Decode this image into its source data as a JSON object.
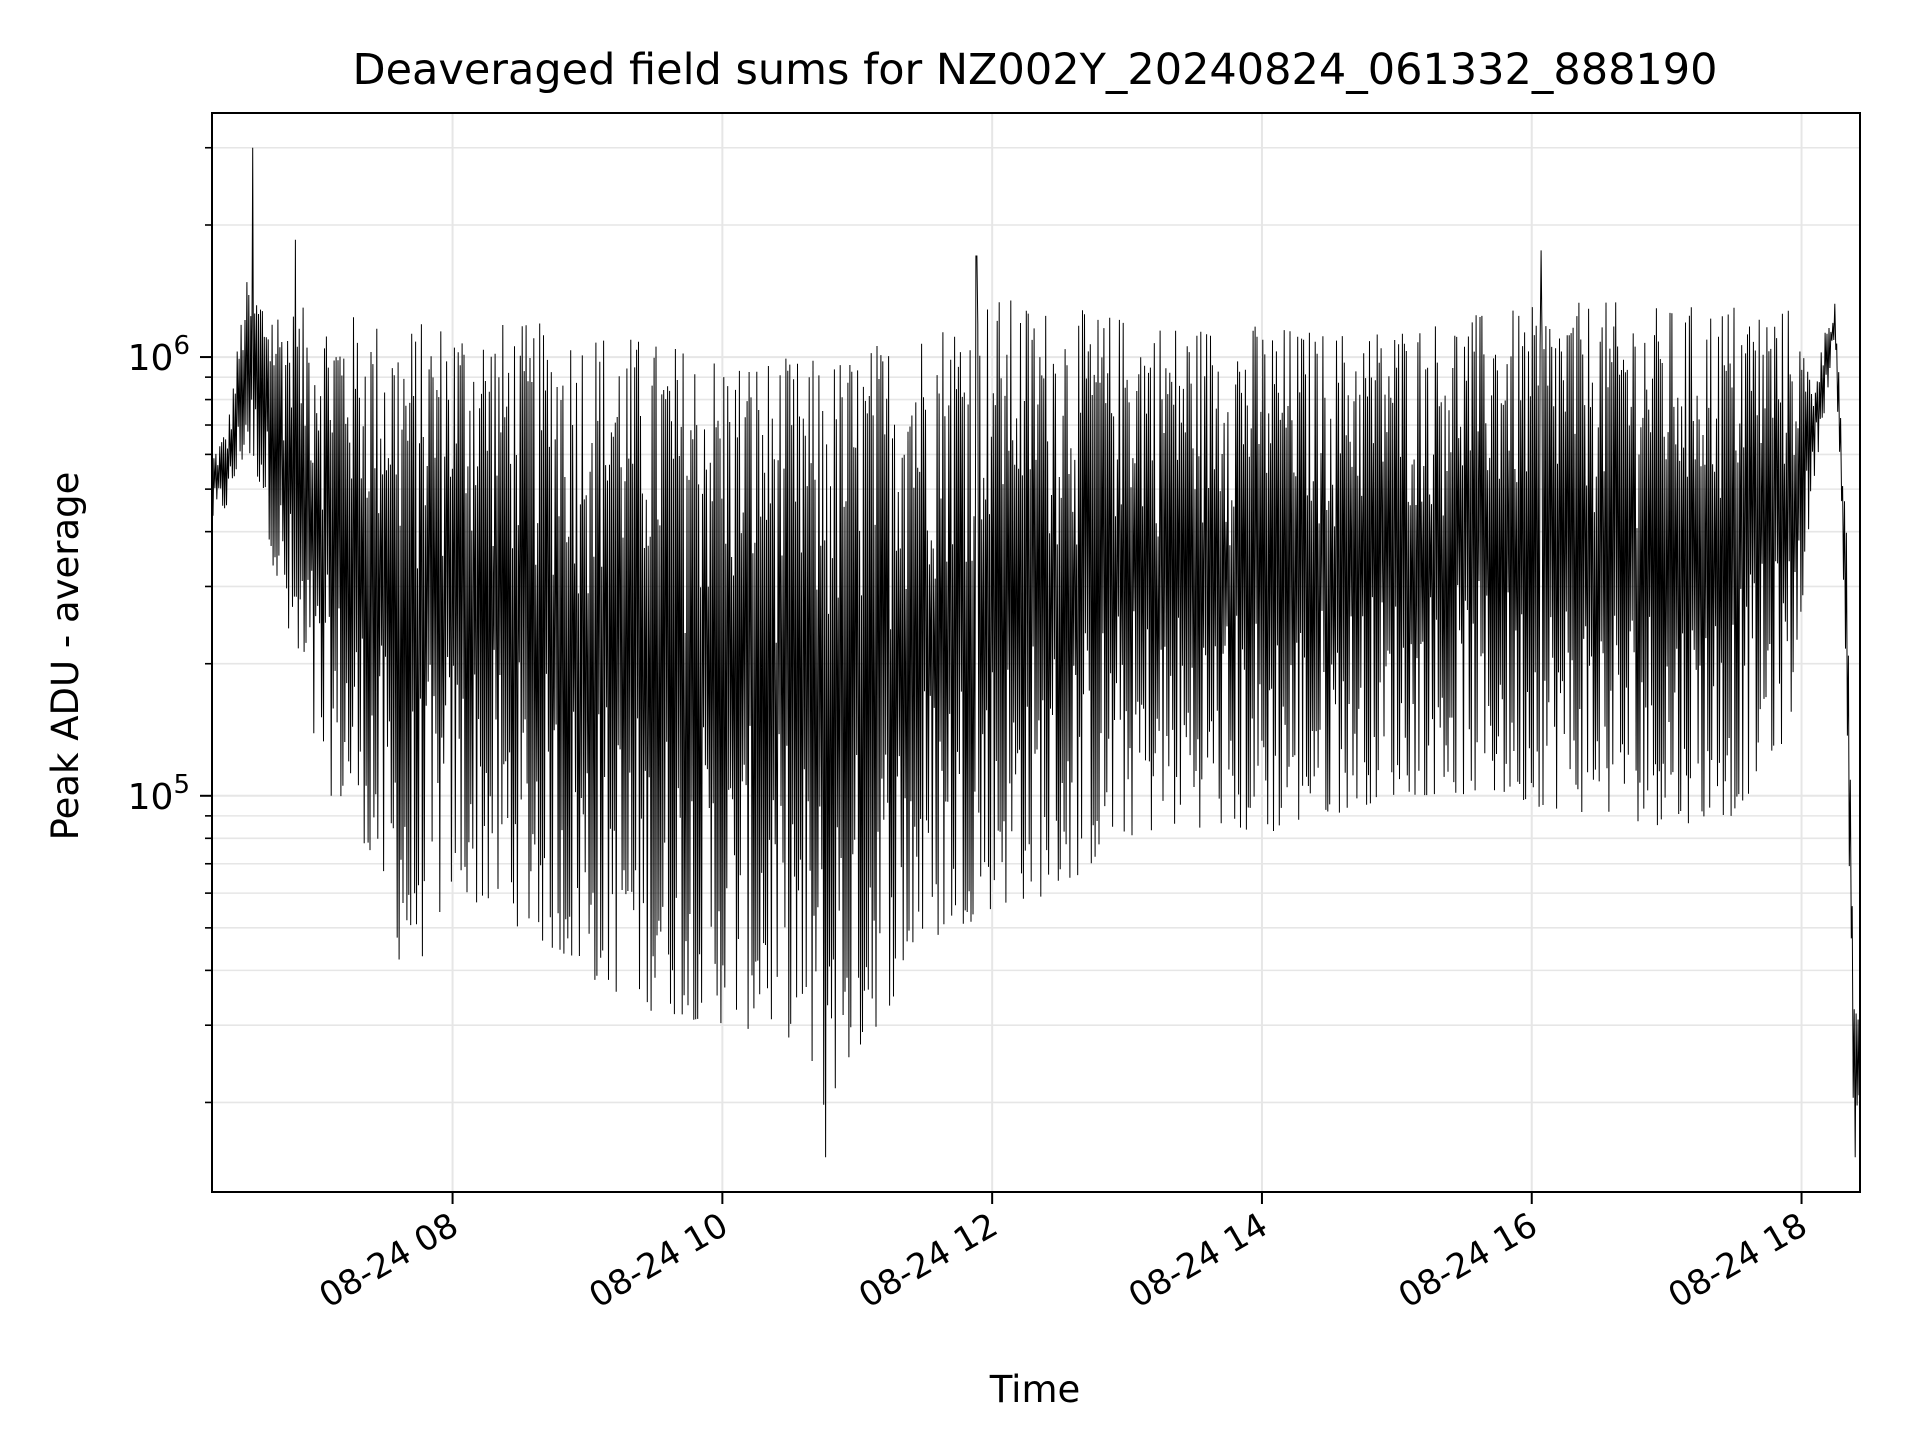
{
  "chart_data": {
    "type": "line",
    "title": "Deaveraged field sums for NZ002Y_20240824_061332_888190",
    "xlabel": "Time",
    "ylabel": "Peak ADU - average",
    "x_range": [
      "2024-08-24T06:13",
      "2024-08-24T18:26"
    ],
    "ylim": [
      12500,
      3600000
    ],
    "y_scale": "log",
    "grid": true,
    "line_color": "#000000",
    "x_ticks": [
      {
        "t": "2024-08-24T08:00",
        "label": "08-24 08"
      },
      {
        "t": "2024-08-24T10:00",
        "label": "08-24 10"
      },
      {
        "t": "2024-08-24T12:00",
        "label": "08-24 12"
      },
      {
        "t": "2024-08-24T14:00",
        "label": "08-24 14"
      },
      {
        "t": "2024-08-24T16:00",
        "label": "08-24 16"
      },
      {
        "t": "2024-08-24T18:00",
        "label": "08-24 18"
      }
    ],
    "y_ticks": [
      {
        "value": 100000,
        "base": "10",
        "exp": "5"
      },
      {
        "value": 1000000,
        "base": "10",
        "exp": "6"
      }
    ],
    "series": [
      {
        "style": "oscillating",
        "points": [
          {
            "t": "2024-08-24T06:13",
            "upper": 600000,
            "lower": 420000
          },
          {
            "t": "2024-08-24T06:20",
            "upper": 700000,
            "lower": 450000
          },
          {
            "t": "2024-08-24T06:28",
            "upper": 1500000,
            "lower": 600000
          },
          {
            "t": "2024-08-24T06:35",
            "upper": 1400000,
            "lower": 500000
          },
          {
            "t": "2024-08-24T06:45",
            "upper": 1300000,
            "lower": 230000
          },
          {
            "t": "2024-08-24T07:00",
            "upper": 1300000,
            "lower": 110000
          },
          {
            "t": "2024-08-24T07:20",
            "upper": 1250000,
            "lower": 80000
          },
          {
            "t": "2024-08-24T07:40",
            "upper": 1200000,
            "lower": 36000
          },
          {
            "t": "2024-08-24T08:00",
            "upper": 1250000,
            "lower": 60000
          },
          {
            "t": "2024-08-24T08:30",
            "upper": 1200000,
            "lower": 50000
          },
          {
            "t": "2024-08-24T09:00",
            "upper": 1200000,
            "lower": 38000
          },
          {
            "t": "2024-08-24T09:30",
            "upper": 1100000,
            "lower": 32000
          },
          {
            "t": "2024-08-24T10:00",
            "upper": 1050000,
            "lower": 30000
          },
          {
            "t": "2024-08-24T10:30",
            "upper": 1000000,
            "lower": 28000
          },
          {
            "t": "2024-08-24T10:45",
            "upper": 1000000,
            "lower": 19000
          },
          {
            "t": "2024-08-24T11:00",
            "upper": 1050000,
            "lower": 25000
          },
          {
            "t": "2024-08-24T11:30",
            "upper": 1200000,
            "lower": 45000
          },
          {
            "t": "2024-08-24T12:00",
            "upper": 1400000,
            "lower": 55000
          },
          {
            "t": "2024-08-24T12:30",
            "upper": 1300000,
            "lower": 60000
          },
          {
            "t": "2024-08-24T13:00",
            "upper": 1250000,
            "lower": 80000
          },
          {
            "t": "2024-08-24T13:30",
            "upper": 1200000,
            "lower": 85000
          },
          {
            "t": "2024-08-24T14:00",
            "upper": 1200000,
            "lower": 80000
          },
          {
            "t": "2024-08-24T14:30",
            "upper": 1150000,
            "lower": 90000
          },
          {
            "t": "2024-08-24T15:00",
            "upper": 1200000,
            "lower": 100000
          },
          {
            "t": "2024-08-24T15:30",
            "upper": 1250000,
            "lower": 100000
          },
          {
            "t": "2024-08-24T16:00",
            "upper": 1300000,
            "lower": 95000
          },
          {
            "t": "2024-08-24T16:30",
            "upper": 1350000,
            "lower": 90000
          },
          {
            "t": "2024-08-24T17:00",
            "upper": 1300000,
            "lower": 85000
          },
          {
            "t": "2024-08-24T17:30",
            "upper": 1350000,
            "lower": 90000
          },
          {
            "t": "2024-08-24T17:55",
            "upper": 1300000,
            "lower": 140000
          },
          {
            "t": "2024-08-24T18:05",
            "upper": 900000,
            "lower": 500000
          },
          {
            "t": "2024-08-24T18:15",
            "upper": 1400000,
            "lower": 1100000
          },
          {
            "t": "2024-08-24T18:20",
            "upper": 400000,
            "lower": 150000
          },
          {
            "t": "2024-08-24T18:23",
            "upper": 40000,
            "lower": 20000
          },
          {
            "t": "2024-08-24T18:26",
            "upper": 32000,
            "lower": 17000
          }
        ],
        "spikes": [
          {
            "t": "2024-08-24T06:31",
            "value": 3000000
          },
          {
            "t": "2024-08-24T06:50",
            "value": 1850000
          },
          {
            "t": "2024-08-24T11:53",
            "value": 1700000
          },
          {
            "t": "2024-08-24T16:04",
            "value": 1750000
          },
          {
            "t": "2024-08-24T10:46",
            "value": 15000
          },
          {
            "t": "2024-08-24T18:24",
            "value": 15000
          }
        ]
      }
    ]
  }
}
